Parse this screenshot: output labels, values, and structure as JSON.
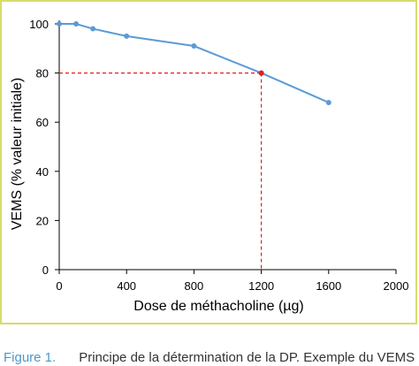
{
  "chart_data": {
    "type": "line",
    "xlabel": "Dose de méthacholine (µg)",
    "ylabel": "VEMS (% valeur initiale)",
    "xlim": [
      0,
      2000
    ],
    "ylim": [
      0,
      100
    ],
    "xticks": [
      0,
      400,
      800,
      1200,
      1600,
      2000
    ],
    "yticks": [
      0,
      20,
      40,
      60,
      80,
      100
    ],
    "grid": false,
    "series": [
      {
        "x": [
          0,
          100,
          200,
          400,
          800,
          1200,
          1600
        ],
        "y": [
          100,
          100,
          98,
          95,
          91,
          80,
          68
        ],
        "color": "#5b9bd5"
      }
    ],
    "annotations": [
      {
        "type": "dashed-crosshair",
        "x": 1200,
        "y": 80,
        "color": "#e02020"
      }
    ]
  },
  "caption": {
    "label": "Figure 1.",
    "text": "Principe de la détermination de la DP. Exemple du VEMS"
  },
  "colors": {
    "frame_border": "#d6dc6a",
    "caption_label": "#4f96c8"
  }
}
